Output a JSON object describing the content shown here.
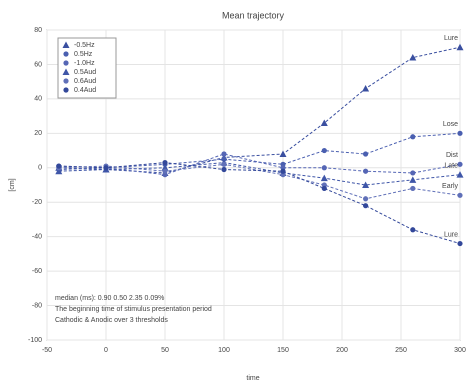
{
  "chart_data": {
    "type": "line",
    "title": "Mean trajectory",
    "xlabel": "time",
    "ylabel": "[cm]",
    "xlim": [
      -50,
      300
    ],
    "xticks": [
      -50,
      0,
      50,
      100,
      150,
      200,
      250,
      300
    ],
    "ylim": [
      -100,
      80
    ],
    "yticks": [
      80,
      60,
      40,
      20,
      0,
      -20,
      -40,
      -60,
      -80,
      -100
    ],
    "grid": true,
    "legend": "upper left",
    "x": [
      -40,
      0,
      50,
      100,
      150,
      185,
      220,
      260,
      300
    ],
    "series": [
      {
        "name": "-0.5Hz",
        "color": "#3a4fa0",
        "marker": "triangle",
        "end_label": "Lure",
        "values": [
          0,
          -1,
          -3,
          6,
          8,
          26,
          46,
          64,
          70
        ]
      },
      {
        "name": "0.5Hz",
        "color": "#4a5fb0",
        "marker": "circle",
        "end_label": "Lose",
        "values": [
          -1,
          0,
          2,
          5,
          2,
          10,
          8,
          18,
          20
        ]
      },
      {
        "name": "-1.0Hz",
        "color": "#5566b5",
        "marker": "circle",
        "end_label": "Dist",
        "values": [
          1,
          0,
          -4,
          8,
          0,
          0,
          -2,
          -3,
          2
        ]
      },
      {
        "name": "0.5Aud",
        "color": "#3f56a8",
        "marker": "triangle",
        "end_label": "Late",
        "values": [
          -2,
          -1,
          0,
          3,
          -3,
          -6,
          -10,
          -7,
          -4
        ]
      },
      {
        "name": "0.6Aud",
        "color": "#6070b8",
        "marker": "circle",
        "end_label": "Early",
        "values": [
          0,
          1,
          -2,
          2,
          -4,
          -10,
          -18,
          -12,
          -16
        ]
      },
      {
        "name": "0.4Aud",
        "color": "#33489a",
        "marker": "circle",
        "end_label": "Lure",
        "values": [
          1,
          0,
          3,
          -1,
          -2,
          -12,
          -22,
          -36,
          -44
        ]
      }
    ],
    "annotations": [
      "median (ms): 0.90 0.50 2.35 0.09%",
      "The beginning time of stimulus presentation period",
      "Cathodic & Anodic over 3 thresholds"
    ]
  }
}
